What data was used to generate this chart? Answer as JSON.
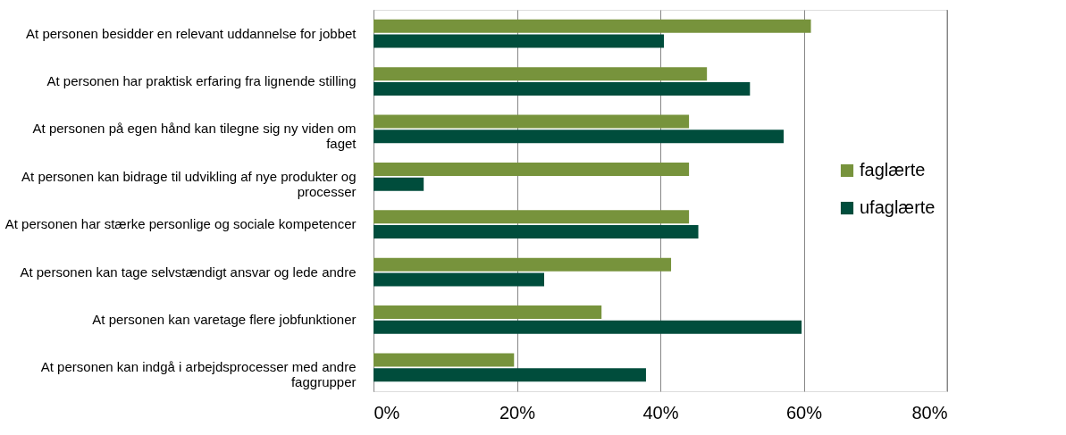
{
  "chart_data": {
    "type": "bar",
    "orientation": "horizontal",
    "categories": [
      "At personen besidder en relevant uddannelse for jobbet",
      "At personen har praktisk erfaring fra lignende stilling",
      "At personen på egen hånd kan tilegne sig ny viden om faget",
      "At personen kan bidrage til udvikling af nye produkter og processer",
      "At personen har stærke personlige og sociale kompetencer",
      "At personen kan tage selvstændigt ansvar og lede andre",
      "At personen kan varetage flere jobfunktioner",
      "At personen kan indgå i arbejdsprocesser med andre faggrupper"
    ],
    "series": [
      {
        "name": "faglærte",
        "color": "#77933c",
        "values": [
          61.0,
          46.5,
          44.0,
          44.0,
          44.0,
          41.5,
          31.8,
          19.6
        ]
      },
      {
        "name": "ufaglærte",
        "color": "#004d3c",
        "values": [
          40.5,
          52.5,
          57.2,
          7.0,
          45.3,
          23.8,
          59.7,
          38.0
        ]
      }
    ],
    "xlim": [
      0,
      80
    ],
    "xticks": [
      {
        "value": 0,
        "label": "0%"
      },
      {
        "value": 20,
        "label": "20%"
      },
      {
        "value": 40,
        "label": "40%"
      },
      {
        "value": 60,
        "label": "60%"
      },
      {
        "value": 80,
        "label": "80%"
      }
    ],
    "grid": "x",
    "legend": "right"
  }
}
